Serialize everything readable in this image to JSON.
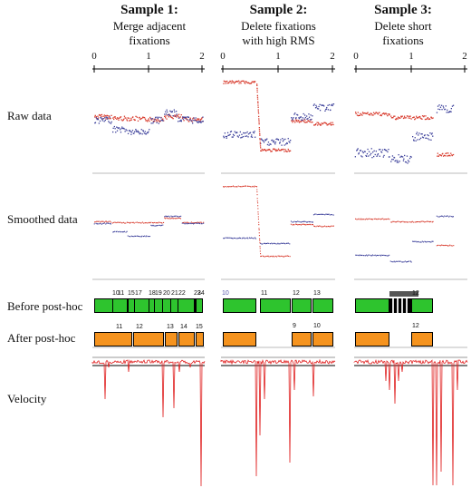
{
  "samples": [
    {
      "title": "Sample 1:",
      "subtitle_line1": "Merge adjacent",
      "subtitle_line2": "fixations"
    },
    {
      "title": "Sample 2:",
      "subtitle_line1": "Delete fixations",
      "subtitle_line2": "with high RMS"
    },
    {
      "title": "Sample 3:",
      "subtitle_line1": "Delete short",
      "subtitle_line2": "fixations"
    }
  ],
  "row_labels": {
    "raw": "Raw data",
    "smoothed": "Smoothed data",
    "before": "Before post-hoc",
    "after": "After post-hoc",
    "velocity": "Velocity"
  },
  "axis_ticks": [
    "0",
    "1",
    "2"
  ],
  "before_labels": [
    [
      "10",
      "11",
      "15",
      "17",
      "18",
      "19",
      "20",
      "21",
      "22",
      "23",
      "24"
    ],
    [
      "10",
      "11",
      "12",
      "13"
    ],
    [
      "12"
    ]
  ],
  "after_labels": [
    [
      "11",
      "12",
      "13",
      "14",
      "15"
    ],
    [
      "9",
      "10"
    ],
    [
      "12"
    ]
  ],
  "colors": {
    "horizontal": "#d83a2c",
    "vertical": "#3b3f9a",
    "fixation_before": "#2ec42e",
    "fixation_after": "#f5931e",
    "velocity": "#e02020"
  }
}
